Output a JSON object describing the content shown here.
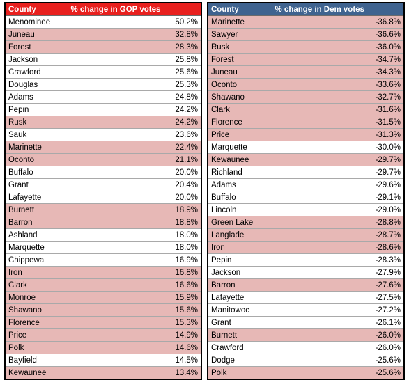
{
  "gop_table": {
    "headers": [
      "County",
      "% change in GOP votes"
    ],
    "highlight_color": "#e7b8b6",
    "header_color": "#e8201e",
    "rows": [
      {
        "county": "Menominee",
        "value": "50.2%",
        "highlight": false
      },
      {
        "county": "Juneau",
        "value": "32.8%",
        "highlight": true
      },
      {
        "county": "Forest",
        "value": "28.3%",
        "highlight": true
      },
      {
        "county": "Jackson",
        "value": "25.8%",
        "highlight": false
      },
      {
        "county": "Crawford",
        "value": "25.6%",
        "highlight": false
      },
      {
        "county": "Douglas",
        "value": "25.3%",
        "highlight": false
      },
      {
        "county": "Adams",
        "value": "24.8%",
        "highlight": false
      },
      {
        "county": "Pepin",
        "value": "24.2%",
        "highlight": false
      },
      {
        "county": "Rusk",
        "value": "24.2%",
        "highlight": true
      },
      {
        "county": "Sauk",
        "value": "23.6%",
        "highlight": false
      },
      {
        "county": "Marinette",
        "value": "22.4%",
        "highlight": true
      },
      {
        "county": "Oconto",
        "value": "21.1%",
        "highlight": true
      },
      {
        "county": "Buffalo",
        "value": "20.0%",
        "highlight": false
      },
      {
        "county": "Grant",
        "value": "20.4%",
        "highlight": false
      },
      {
        "county": "Lafayette",
        "value": "20.0%",
        "highlight": false
      },
      {
        "county": "Burnett",
        "value": "18.9%",
        "highlight": true
      },
      {
        "county": "Barron",
        "value": "18.8%",
        "highlight": true
      },
      {
        "county": "Ashland",
        "value": "18.0%",
        "highlight": false
      },
      {
        "county": "Marquette",
        "value": "18.0%",
        "highlight": false
      },
      {
        "county": "Chippewa",
        "value": "16.9%",
        "highlight": false
      },
      {
        "county": "Iron",
        "value": "16.8%",
        "highlight": true
      },
      {
        "county": "Clark",
        "value": "16.6%",
        "highlight": true
      },
      {
        "county": "Monroe",
        "value": "15.9%",
        "highlight": true
      },
      {
        "county": "Shawano",
        "value": "15.6%",
        "highlight": true
      },
      {
        "county": "Florence",
        "value": "15.3%",
        "highlight": true
      },
      {
        "county": "Price",
        "value": "14.9%",
        "highlight": true
      },
      {
        "county": "Polk",
        "value": "14.6%",
        "highlight": true
      },
      {
        "county": "Bayfield",
        "value": "14.5%",
        "highlight": false
      },
      {
        "county": "Kewaunee",
        "value": "13.4%",
        "highlight": true
      }
    ]
  },
  "dem_table": {
    "headers": [
      "County",
      "% change in Dem votes"
    ],
    "highlight_color": "#e7b8b6",
    "header_color": "#3f638f",
    "rows": [
      {
        "county": "Marinette",
        "value": "-36.8%",
        "highlight": true
      },
      {
        "county": "Sawyer",
        "value": "-36.6%",
        "highlight": true
      },
      {
        "county": "Rusk",
        "value": "-36.0%",
        "highlight": true
      },
      {
        "county": "Forest",
        "value": "-34.7%",
        "highlight": true
      },
      {
        "county": "Juneau",
        "value": "-34.3%",
        "highlight": true
      },
      {
        "county": "Oconto",
        "value": "-33.6%",
        "highlight": true
      },
      {
        "county": "Shawano",
        "value": "-32.7%",
        "highlight": true
      },
      {
        "county": "Clark",
        "value": "-31.6%",
        "highlight": true
      },
      {
        "county": "Florence",
        "value": "-31.5%",
        "highlight": true
      },
      {
        "county": "Price",
        "value": "-31.3%",
        "highlight": true
      },
      {
        "county": "Marquette",
        "value": "-30.0%",
        "highlight": false
      },
      {
        "county": "Kewaunee",
        "value": "-29.7%",
        "highlight": true
      },
      {
        "county": "Richland",
        "value": "-29.7%",
        "highlight": false
      },
      {
        "county": "Adams",
        "value": "-29.6%",
        "highlight": false
      },
      {
        "county": "Buffalo",
        "value": "-29.1%",
        "highlight": false
      },
      {
        "county": "Lincoln",
        "value": "-29.0%",
        "highlight": false
      },
      {
        "county": "Green Lake",
        "value": "-28.8%",
        "highlight": true
      },
      {
        "county": "Langlade",
        "value": "-28.7%",
        "highlight": true
      },
      {
        "county": "Iron",
        "value": "-28.6%",
        "highlight": true
      },
      {
        "county": "Pepin",
        "value": "-28.3%",
        "highlight": false
      },
      {
        "county": "Jackson",
        "value": "-27.9%",
        "highlight": false
      },
      {
        "county": "Barron",
        "value": "-27.6%",
        "highlight": true
      },
      {
        "county": "Lafayette",
        "value": "-27.5%",
        "highlight": false
      },
      {
        "county": "Manitowoc",
        "value": "-27.2%",
        "highlight": false
      },
      {
        "county": "Grant",
        "value": "-26.1%",
        "highlight": false
      },
      {
        "county": "Burnett",
        "value": "-26.0%",
        "highlight": true
      },
      {
        "county": "Crawford",
        "value": "-26.0%",
        "highlight": false
      },
      {
        "county": "Dodge",
        "value": "-25.6%",
        "highlight": false
      },
      {
        "county": "Polk",
        "value": "-25.6%",
        "highlight": true
      }
    ]
  }
}
